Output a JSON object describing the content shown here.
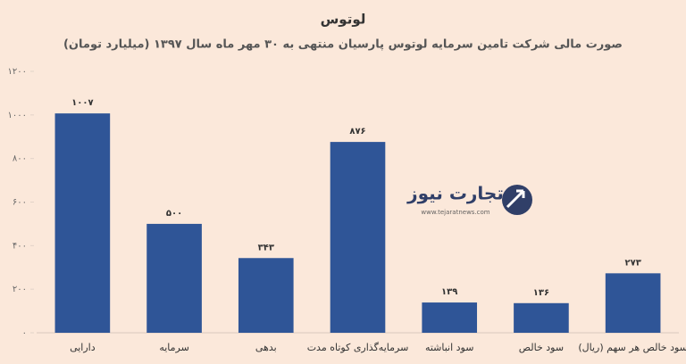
{
  "chart_data": {
    "type": "bar",
    "title": "لوتوس",
    "subtitle": "صورت مالی شرکت تامین سرمایه لوتوس پارسیان منتهی به ۳۰ مهر ماه سال ۱۳۹۷ (میلیارد تومان)",
    "categories": [
      "دارایی",
      "سرمایه",
      "بدهی",
      "سرمایه‌گذاری کوتاه مدت",
      "سود انباشته",
      "سود خالص",
      "سود خالص هر سهم (ریال)"
    ],
    "values": [
      1007,
      500,
      343,
      876,
      139,
      136,
      273
    ],
    "value_labels": [
      "۱۰۰۷",
      "۵۰۰",
      "۳۴۳",
      "۸۷۶",
      "۱۳۹",
      "۱۳۶",
      "۲۷۳"
    ],
    "color": "#2f5597",
    "ylim": [
      0,
      1200
    ],
    "yticks": [
      {
        "value": 0,
        "label": "۰"
      },
      {
        "value": 200,
        "label": "۲۰۰"
      },
      {
        "value": 400,
        "label": "۴۰۰"
      },
      {
        "value": 600,
        "label": "۶۰۰"
      },
      {
        "value": 800,
        "label": "۸۰۰"
      },
      {
        "value": 1000,
        "label": "۱۰۰۰"
      },
      {
        "value": 1200,
        "label": "۱۲۰۰"
      }
    ],
    "grid": false,
    "watermark": {
      "name": "تجارت نیوز",
      "url": "www.tejaratnews.com"
    }
  }
}
